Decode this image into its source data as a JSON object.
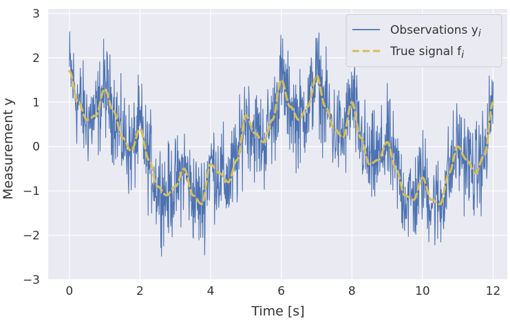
{
  "chart_data": {
    "type": "line",
    "title": "",
    "xlabel": "Time [s]",
    "ylabel": "Measurement y",
    "xlim": [
      -0.6,
      12.4
    ],
    "ylim": [
      -3,
      3.1
    ],
    "x_ticks": [
      0,
      2,
      4,
      6,
      8,
      10,
      12
    ],
    "y_ticks": [
      3,
      2,
      1,
      0,
      -1,
      -2,
      -3
    ],
    "x_tick_labels": [
      "0",
      "2",
      "4",
      "6",
      "8",
      "10",
      "12"
    ],
    "y_tick_labels": [
      "3",
      "2",
      "1",
      "0",
      "−1",
      "−2",
      "−3"
    ],
    "grid": true,
    "legend_position": "top-right",
    "background_color": "#eaeaf2",
    "series": [
      {
        "name": "Observations y",
        "name_subscript": "i",
        "style": "solid",
        "color": "#4c72b0",
        "x": [
          0.0,
          0.25,
          0.5,
          0.75,
          1.0,
          1.25,
          1.5,
          1.75,
          2.0,
          2.25,
          2.5,
          2.75,
          3.0,
          3.25,
          3.5,
          3.75,
          4.0,
          4.25,
          4.5,
          4.75,
          5.0,
          5.25,
          5.5,
          5.75,
          6.0,
          6.25,
          6.5,
          6.75,
          7.0,
          7.25,
          7.5,
          7.75,
          8.0,
          8.25,
          8.5,
          8.75,
          9.0,
          9.25,
          9.5,
          9.75,
          10.0,
          10.25,
          10.5,
          10.75,
          11.0,
          11.25,
          11.5,
          11.75,
          12.0
        ],
        "y": [
          1.7,
          1.0,
          0.6,
          0.7,
          1.3,
          0.8,
          0.2,
          -0.1,
          0.4,
          -0.3,
          -0.9,
          -1.1,
          -0.9,
          -0.5,
          -1.1,
          -1.3,
          -0.4,
          -0.6,
          -0.8,
          -0.3,
          0.7,
          0.3,
          0.1,
          0.6,
          1.5,
          0.9,
          0.6,
          0.9,
          1.6,
          0.9,
          0.4,
          0.2,
          1.0,
          0.2,
          -0.4,
          -0.3,
          0.1,
          -0.5,
          -1.1,
          -1.2,
          -0.7,
          -1.2,
          -1.3,
          -0.6,
          0.0,
          -0.3,
          -0.6,
          -0.2,
          1.0
        ]
      },
      {
        "name": "True signal f",
        "name_subscript": "i",
        "style": "dashed",
        "color": "#d6bd5a",
        "x": [
          0.0,
          0.25,
          0.5,
          0.75,
          1.0,
          1.25,
          1.5,
          1.75,
          2.0,
          2.25,
          2.5,
          2.75,
          3.0,
          3.25,
          3.5,
          3.75,
          4.0,
          4.25,
          4.5,
          4.75,
          5.0,
          5.25,
          5.5,
          5.75,
          6.0,
          6.25,
          6.5,
          6.75,
          7.0,
          7.25,
          7.5,
          7.75,
          8.0,
          8.25,
          8.5,
          8.75,
          9.0,
          9.25,
          9.5,
          9.75,
          10.0,
          10.25,
          10.5,
          10.75,
          11.0,
          11.25,
          11.5,
          11.75,
          12.0
        ],
        "y": [
          1.7,
          1.0,
          0.6,
          0.7,
          1.3,
          0.8,
          0.2,
          -0.1,
          0.4,
          -0.3,
          -0.9,
          -1.1,
          -0.9,
          -0.5,
          -1.1,
          -1.3,
          -0.4,
          -0.6,
          -0.8,
          -0.3,
          0.7,
          0.3,
          0.1,
          0.6,
          1.5,
          0.9,
          0.6,
          0.9,
          1.6,
          0.9,
          0.4,
          0.2,
          1.0,
          0.2,
          -0.4,
          -0.3,
          0.1,
          -0.5,
          -1.1,
          -1.2,
          -0.7,
          -1.2,
          -1.3,
          -0.6,
          0.0,
          -0.3,
          -0.6,
          -0.2,
          1.0
        ]
      }
    ]
  }
}
